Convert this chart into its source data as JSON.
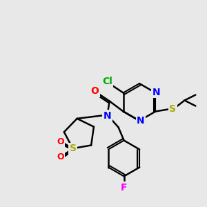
{
  "bg_color": "#e8e8e8",
  "bond_color": "#000000",
  "bond_width": 1.5,
  "atom_colors": {
    "Cl": "#00aa00",
    "N": "#0000ff",
    "O": "#ff0000",
    "S_sulfide": "#aaaa00",
    "S_sulfone": "#aaaa00",
    "F": "#ff00ff",
    "C": "#000000"
  },
  "font_size": 9,
  "fig_size": [
    3.0,
    3.0
  ],
  "dpi": 100
}
